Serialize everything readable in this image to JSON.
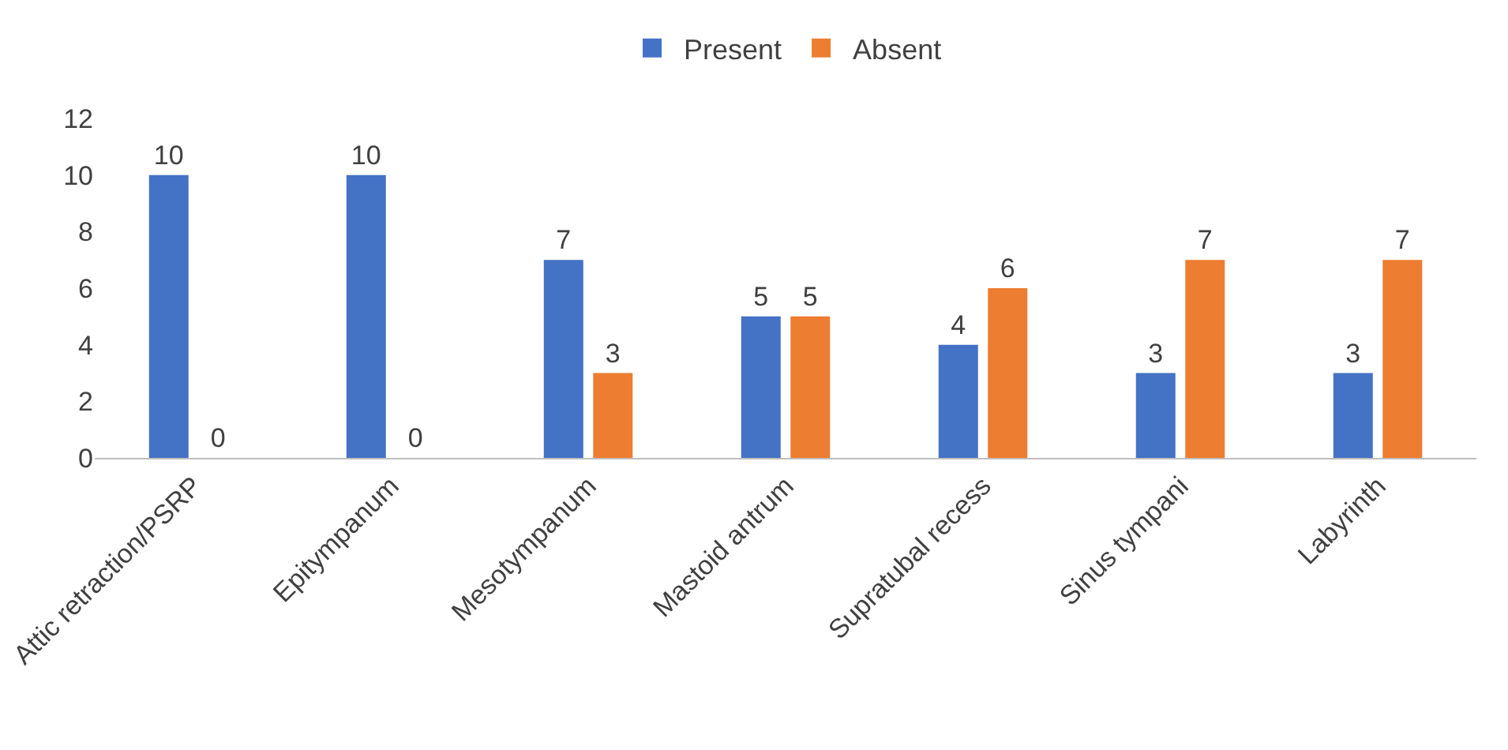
{
  "chart_data": {
    "type": "bar",
    "categories": [
      "Attic retraction/PSRP",
      "Epitympanum",
      "Mesotympanum",
      "Mastoid antrum",
      "Supratubal recess",
      "Sinus tympani",
      "Labyrinth"
    ],
    "series": [
      {
        "name": "Present",
        "color": "#4472c4",
        "values": [
          10,
          10,
          7,
          5,
          4,
          3,
          3
        ]
      },
      {
        "name": "Absent",
        "color": "#ed7d31",
        "values": [
          0,
          0,
          3,
          5,
          6,
          7,
          7
        ]
      }
    ],
    "ylim": [
      0,
      12
    ],
    "yticks": [
      0,
      2,
      4,
      6,
      8,
      10,
      12
    ],
    "grid": false,
    "legend": "top",
    "data_labels": true
  }
}
